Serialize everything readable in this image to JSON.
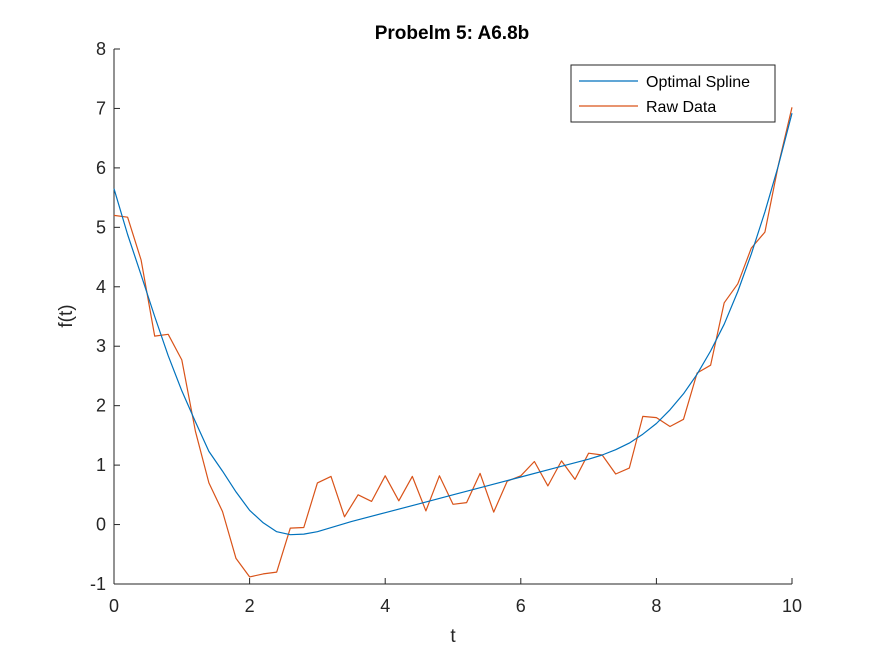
{
  "chart_data": {
    "type": "line",
    "title": "Probelm 5: A6.8b",
    "xlabel": "t",
    "ylabel": "f(t)",
    "xlim": [
      0,
      10
    ],
    "ylim": [
      -1,
      8
    ],
    "xticks": [
      0,
      2,
      4,
      6,
      8,
      10
    ],
    "yticks": [
      -1,
      0,
      1,
      2,
      3,
      4,
      5,
      6,
      7,
      8
    ],
    "grid": false,
    "legend_position": "top-right",
    "series": [
      {
        "name": "Optimal Spline",
        "color": "#0072BD",
        "x": [
          0,
          0.2,
          0.4,
          0.6,
          0.8,
          1.0,
          1.2,
          1.4,
          1.6,
          1.8,
          2.0,
          2.2,
          2.4,
          2.6,
          2.8,
          3.0,
          3.5,
          4.0,
          4.5,
          5.0,
          5.5,
          6.0,
          6.5,
          7.0,
          7.2,
          7.4,
          7.6,
          7.8,
          8.0,
          8.2,
          8.4,
          8.6,
          8.8,
          9.0,
          9.2,
          9.4,
          9.6,
          9.8,
          10.0
        ],
        "values": [
          5.65,
          4.88,
          4.2,
          3.5,
          2.84,
          2.25,
          1.73,
          1.23,
          0.9,
          0.55,
          0.24,
          0.03,
          -0.12,
          -0.17,
          -0.16,
          -0.12,
          0.05,
          0.2,
          0.35,
          0.5,
          0.65,
          0.8,
          0.95,
          1.1,
          1.17,
          1.26,
          1.37,
          1.52,
          1.7,
          1.93,
          2.2,
          2.53,
          2.92,
          3.37,
          3.92,
          4.55,
          5.26,
          6.04,
          6.92
        ]
      },
      {
        "name": "Raw Data",
        "color": "#D95319",
        "x": [
          0,
          0.2,
          0.4,
          0.6,
          0.8,
          1.0,
          1.2,
          1.4,
          1.6,
          1.8,
          2.0,
          2.2,
          2.4,
          2.6,
          2.8,
          3.0,
          3.2,
          3.4,
          3.6,
          3.8,
          4.0,
          4.2,
          4.4,
          4.6,
          4.8,
          5.0,
          5.2,
          5.4,
          5.6,
          5.8,
          6.0,
          6.2,
          6.4,
          6.6,
          6.8,
          7.0,
          7.2,
          7.4,
          7.6,
          7.8,
          8.0,
          8.2,
          8.4,
          8.6,
          8.8,
          9.0,
          9.2,
          9.4,
          9.6,
          9.8,
          10.0
        ],
        "values": [
          5.2,
          5.17,
          4.45,
          3.17,
          3.2,
          2.77,
          1.57,
          0.7,
          0.22,
          -0.57,
          -0.88,
          -0.83,
          -0.8,
          -0.06,
          -0.05,
          0.7,
          0.81,
          0.13,
          0.5,
          0.39,
          0.82,
          0.4,
          0.81,
          0.23,
          0.82,
          0.34,
          0.37,
          0.86,
          0.21,
          0.73,
          0.82,
          1.06,
          0.65,
          1.07,
          0.76,
          1.2,
          1.17,
          0.85,
          0.95,
          1.82,
          1.8,
          1.65,
          1.77,
          2.55,
          2.68,
          3.73,
          4.05,
          4.65,
          4.92,
          6.05,
          7.02
        ]
      }
    ]
  }
}
